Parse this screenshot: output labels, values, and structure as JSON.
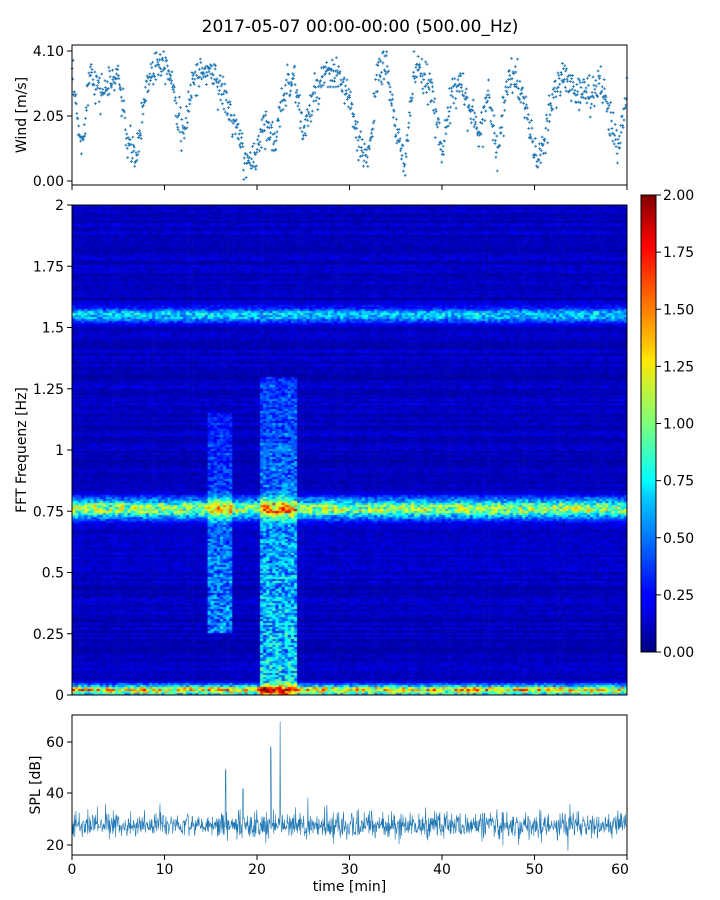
{
  "figure": {
    "title": "2017-05-07 00:00-00:00 (500.00_Hz)"
  },
  "chart_data": [
    {
      "type": "scatter",
      "panel": "wind",
      "ylabel": "Wind [m/s]",
      "xlim": [
        0,
        60
      ],
      "ylim": [
        0.0,
        4.1
      ],
      "yticks": [
        "0.00",
        "2.05",
        "4.10"
      ],
      "xticklabels_shown": false,
      "marker": "+",
      "color": "#1f77b4",
      "x_per_min": 20,
      "trend": [
        {
          "t": 0,
          "v": 3.3
        },
        {
          "t": 1,
          "v": 1.0
        },
        {
          "t": 2,
          "v": 3.6
        },
        {
          "t": 3,
          "v": 2.8
        },
        {
          "t": 4,
          "v": 3.0
        },
        {
          "t": 5,
          "v": 3.4
        },
        {
          "t": 6,
          "v": 1.2
        },
        {
          "t": 7,
          "v": 0.7
        },
        {
          "t": 8,
          "v": 3.0
        },
        {
          "t": 9,
          "v": 3.7
        },
        {
          "t": 10,
          "v": 3.9
        },
        {
          "t": 11,
          "v": 3.0
        },
        {
          "t": 12,
          "v": 1.2
        },
        {
          "t": 13,
          "v": 3.2
        },
        {
          "t": 14,
          "v": 3.4
        },
        {
          "t": 15,
          "v": 3.5
        },
        {
          "t": 16,
          "v": 3.0
        },
        {
          "t": 17,
          "v": 2.2
        },
        {
          "t": 18,
          "v": 1.4
        },
        {
          "t": 19,
          "v": 0.4
        },
        {
          "t": 20,
          "v": 1.0
        },
        {
          "t": 21,
          "v": 2.0
        },
        {
          "t": 22,
          "v": 1.1
        },
        {
          "t": 23,
          "v": 3.0
        },
        {
          "t": 24,
          "v": 3.3
        },
        {
          "t": 25,
          "v": 1.5
        },
        {
          "t": 26,
          "v": 2.5
        },
        {
          "t": 27,
          "v": 3.1
        },
        {
          "t": 28,
          "v": 3.4
        },
        {
          "t": 29,
          "v": 3.2
        },
        {
          "t": 30,
          "v": 2.6
        },
        {
          "t": 31,
          "v": 1.0
        },
        {
          "t": 32,
          "v": 0.8
        },
        {
          "t": 33,
          "v": 3.2
        },
        {
          "t": 34,
          "v": 3.8
        },
        {
          "t": 35,
          "v": 1.5
        },
        {
          "t": 36,
          "v": 0.6
        },
        {
          "t": 37,
          "v": 3.5
        },
        {
          "t": 38,
          "v": 3.2
        },
        {
          "t": 39,
          "v": 2.8
        },
        {
          "t": 40,
          "v": 1.0
        },
        {
          "t": 41,
          "v": 2.5
        },
        {
          "t": 42,
          "v": 3.3
        },
        {
          "t": 43,
          "v": 2.2
        },
        {
          "t": 44,
          "v": 1.5
        },
        {
          "t": 45,
          "v": 2.8
        },
        {
          "t": 46,
          "v": 0.9
        },
        {
          "t": 47,
          "v": 3.0
        },
        {
          "t": 48,
          "v": 3.3
        },
        {
          "t": 49,
          "v": 2.4
        },
        {
          "t": 50,
          "v": 0.8
        },
        {
          "t": 51,
          "v": 1.0
        },
        {
          "t": 52,
          "v": 2.7
        },
        {
          "t": 53,
          "v": 3.3
        },
        {
          "t": 54,
          "v": 3.0
        },
        {
          "t": 55,
          "v": 2.8
        },
        {
          "t": 56,
          "v": 2.7
        },
        {
          "t": 57,
          "v": 3.2
        },
        {
          "t": 58,
          "v": 2.2
        },
        {
          "t": 59,
          "v": 1.0
        },
        {
          "t": 60,
          "v": 3.0
        }
      ]
    },
    {
      "type": "heatmap",
      "panel": "spectrogram",
      "ylabel": "FFT Frequenz [Hz]",
      "xlim": [
        0,
        60
      ],
      "ylim": [
        0,
        2
      ],
      "yticks": [
        "0",
        "0.25",
        "0.5",
        "0.75",
        "1",
        "1.25",
        "1.5",
        "1.75",
        "2"
      ],
      "colormap": "jet",
      "clim": [
        0.0,
        2.0
      ],
      "colorbar_ticks": [
        "0.00",
        "0.25",
        "0.50",
        "0.75",
        "1.00",
        "1.25",
        "1.50",
        "1.75",
        "2.00"
      ],
      "background_level": 0.12,
      "bands": [
        {
          "freq": 0.02,
          "width": 0.02,
          "level": 1.2
        },
        {
          "freq": 0.76,
          "width": 0.04,
          "level": 0.95
        },
        {
          "freq": 1.55,
          "width": 0.03,
          "level": 0.55
        }
      ],
      "bursts": [
        {
          "t_start": 14.8,
          "t_end": 17.2,
          "f_min": 0.25,
          "f_max": 1.15,
          "level": 0.55
        },
        {
          "t_start": 20.3,
          "t_end": 24.3,
          "f_min": 0.0,
          "f_max": 1.3,
          "level": 0.75
        }
      ]
    },
    {
      "type": "line",
      "panel": "spl",
      "ylabel": "SPL [dB]",
      "xlabel": "time [min]",
      "xlim": [
        0,
        60
      ],
      "ylim": [
        16,
        70
      ],
      "yticks": [
        "20",
        "40",
        "60"
      ],
      "xticks": [
        "0",
        "10",
        "20",
        "30",
        "40",
        "50",
        "60"
      ],
      "color": "#1f77b4",
      "baseline_db": 27.5,
      "spikes": [
        {
          "t": 16.6,
          "db": 51
        },
        {
          "t": 18.5,
          "db": 44
        },
        {
          "t": 21.5,
          "db": 58
        },
        {
          "t": 22.5,
          "db": 68
        },
        {
          "t": 25.5,
          "db": 39
        }
      ]
    }
  ]
}
